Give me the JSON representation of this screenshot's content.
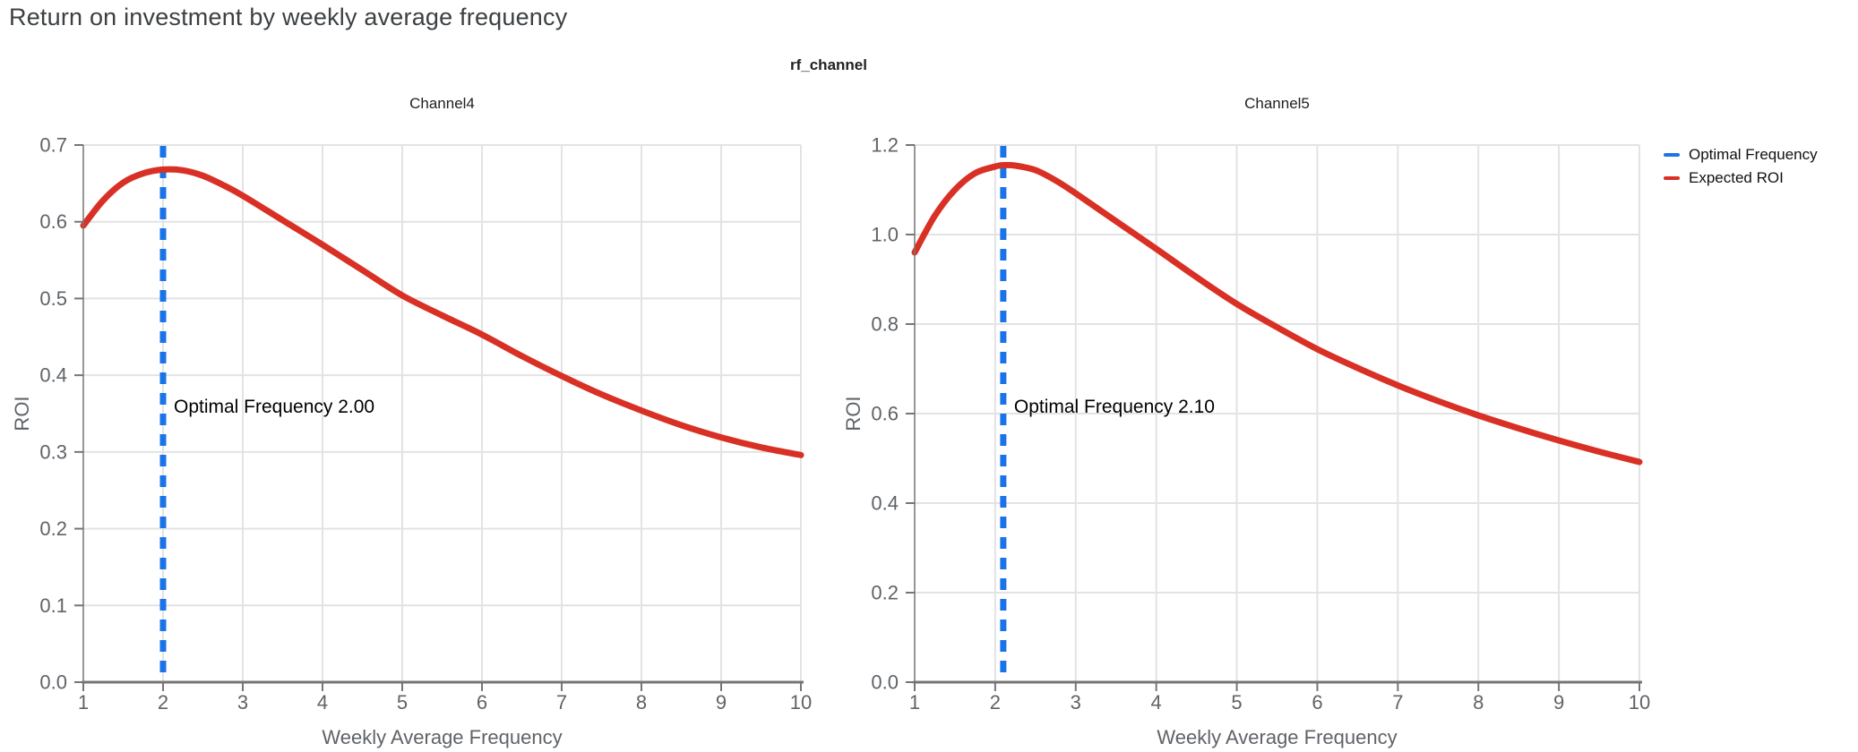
{
  "page_title": "Return on investment by weekly average frequency",
  "figure_title": "rf_channel",
  "colors": {
    "expected_roi": "#d93025",
    "optimal_frequency": "#1a73e8",
    "grid": "#e3e3e3",
    "axis": "#757575",
    "tick_label": "#5f6368",
    "page_title": "#3c4043",
    "subplot_title": "#202124",
    "annotation": "#000000"
  },
  "legend": {
    "position": "top-right",
    "items": [
      {
        "label": "Optimal Frequency",
        "color": "#1a73e8"
      },
      {
        "label": "Expected ROI",
        "color": "#d93025"
      }
    ]
  },
  "chart_data": [
    {
      "type": "line",
      "title": "Channel4",
      "xlabel": "Weekly Average Frequency",
      "ylabel": "ROI",
      "xlim": [
        1,
        10
      ],
      "ylim": [
        0,
        0.7
      ],
      "grid": true,
      "xticks": [
        1,
        2,
        3,
        4,
        5,
        6,
        7,
        8,
        9,
        10
      ],
      "xtick_labels": [
        "1",
        "2",
        "3",
        "4",
        "5",
        "6",
        "7",
        "8",
        "9",
        "10"
      ],
      "yticks": [
        0,
        0.1,
        0.2,
        0.3,
        0.4,
        0.5,
        0.6,
        0.7
      ],
      "ytick_labels": [
        "0.0",
        "0.1",
        "0.2",
        "0.3",
        "0.4",
        "0.5",
        "0.6",
        "0.7"
      ],
      "optimal_frequency": 2.0,
      "annotation": "Optimal Frequency  2.00",
      "series": [
        {
          "name": "Expected ROI",
          "x": [
            1,
            1.25,
            1.5,
            1.75,
            2,
            2.25,
            2.5,
            2.75,
            3,
            3.5,
            4,
            4.5,
            5,
            5.5,
            6,
            6.5,
            7,
            7.5,
            8,
            8.5,
            9,
            9.5,
            10
          ],
          "y": [
            0.595,
            0.628,
            0.651,
            0.663,
            0.668,
            0.667,
            0.66,
            0.648,
            0.634,
            0.602,
            0.57,
            0.537,
            0.504,
            0.478,
            0.453,
            0.425,
            0.399,
            0.375,
            0.354,
            0.335,
            0.319,
            0.306,
            0.296
          ]
        }
      ]
    },
    {
      "type": "line",
      "title": "Channel5",
      "xlabel": "Weekly Average Frequency",
      "ylabel": "ROI",
      "xlim": [
        1,
        10
      ],
      "ylim": [
        0,
        1.2
      ],
      "grid": true,
      "xticks": [
        1,
        2,
        3,
        4,
        5,
        6,
        7,
        8,
        9,
        10
      ],
      "xtick_labels": [
        "1",
        "2",
        "3",
        "4",
        "5",
        "6",
        "7",
        "8",
        "9",
        "10"
      ],
      "yticks": [
        0,
        0.2,
        0.4,
        0.6,
        0.8,
        1.0,
        1.2
      ],
      "ytick_labels": [
        "0.0",
        "0.2",
        "0.4",
        "0.6",
        "0.8",
        "1.0",
        "1.2"
      ],
      "optimal_frequency": 2.1,
      "annotation": "Optimal Frequency  2.10",
      "series": [
        {
          "name": "Expected ROI",
          "x": [
            1,
            1.25,
            1.5,
            1.75,
            2,
            2.1,
            2.25,
            2.5,
            2.75,
            3,
            3.5,
            4,
            4.5,
            5,
            5.5,
            6,
            6.5,
            7,
            7.5,
            8,
            8.5,
            9,
            9.5,
            10
          ],
          "y": [
            0.96,
            1.042,
            1.1,
            1.137,
            1.152,
            1.155,
            1.154,
            1.144,
            1.121,
            1.092,
            1.03,
            0.968,
            0.905,
            0.845,
            0.793,
            0.744,
            0.702,
            0.663,
            0.628,
            0.596,
            0.567,
            0.54,
            0.515,
            0.492
          ]
        }
      ]
    }
  ]
}
